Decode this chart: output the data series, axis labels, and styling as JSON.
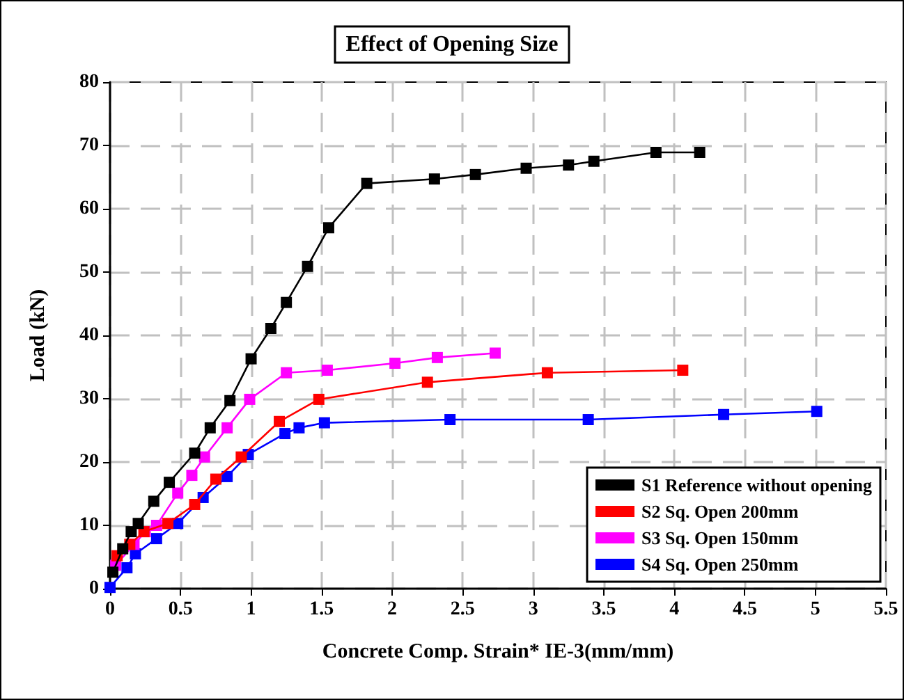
{
  "chart_data": {
    "type": "line",
    "title": "Effect of Opening Size",
    "xlabel": "Concrete Comp. Strain* IE-3(mm/mm)",
    "ylabel": "Load (kN)",
    "xlim": [
      0,
      5.5
    ],
    "xticks": [
      0,
      0.5,
      1,
      1.5,
      2,
      2.5,
      3,
      3.5,
      4,
      4.5,
      5,
      5.5
    ],
    "ylim": [
      0,
      80
    ],
    "yticks": [
      0,
      10,
      20,
      30,
      40,
      50,
      60,
      70,
      80
    ],
    "grid": true,
    "legend": "bottom right",
    "marker": "square",
    "line_style": "solid",
    "series": [
      {
        "name": "S1 Reference without opening",
        "color": "#000000",
        "x": [
          0.02,
          0.09,
          0.15,
          0.2,
          0.31,
          0.42,
          0.6,
          0.71,
          0.85,
          1.0,
          1.14,
          1.25,
          1.4,
          1.55,
          1.82,
          2.3,
          2.59,
          2.95,
          3.25,
          3.43,
          3.87,
          4.18
        ],
        "values": [
          2.6,
          6.3,
          9,
          10.3,
          13.8,
          16.8,
          21.4,
          25.4,
          29.7,
          36.3,
          41.1,
          45.2,
          50.9,
          57,
          64,
          64.7,
          65.4,
          66.4,
          66.9,
          67.5,
          68.9,
          68.9
        ]
      },
      {
        "name": "S2 Sq. Open 200mm",
        "color": "#ff0000",
        "x": [
          0.05,
          0.14,
          0.24,
          0.41,
          0.6,
          0.75,
          0.93,
          1.2,
          1.48,
          2.25,
          3.1,
          4.06
        ],
        "values": [
          5.2,
          7,
          9,
          10.3,
          13.3,
          17.3,
          20.8,
          26.4,
          29.9,
          32.6,
          34.1,
          34.5
        ]
      },
      {
        "name": "S3 Sq. Open 150mm",
        "color": "#ff00ff",
        "x": [
          0.04,
          0.17,
          0.25,
          0.33,
          0.48,
          0.58,
          0.67,
          0.83,
          0.99,
          1.25,
          1.54,
          2.02,
          2.32,
          2.73
        ],
        "values": [
          3.7,
          7,
          9,
          10,
          15.1,
          17.9,
          20.8,
          25.4,
          29.9,
          34.1,
          34.5,
          35.6,
          36.5,
          37.2
        ]
      },
      {
        "name": "S4 Sq. Open 250mm",
        "color": "#0000ff",
        "x": [
          0,
          0.12,
          0.18,
          0.33,
          0.48,
          0.66,
          0.83,
          0.98,
          1.24,
          1.34,
          1.52,
          2.41,
          3.39,
          4.35,
          5.01
        ],
        "values": [
          0.2,
          3.3,
          5.5,
          7.9,
          10.3,
          14.4,
          17.7,
          21.2,
          24.5,
          25.4,
          26.2,
          26.7,
          26.7,
          27.5,
          28
        ]
      }
    ]
  }
}
